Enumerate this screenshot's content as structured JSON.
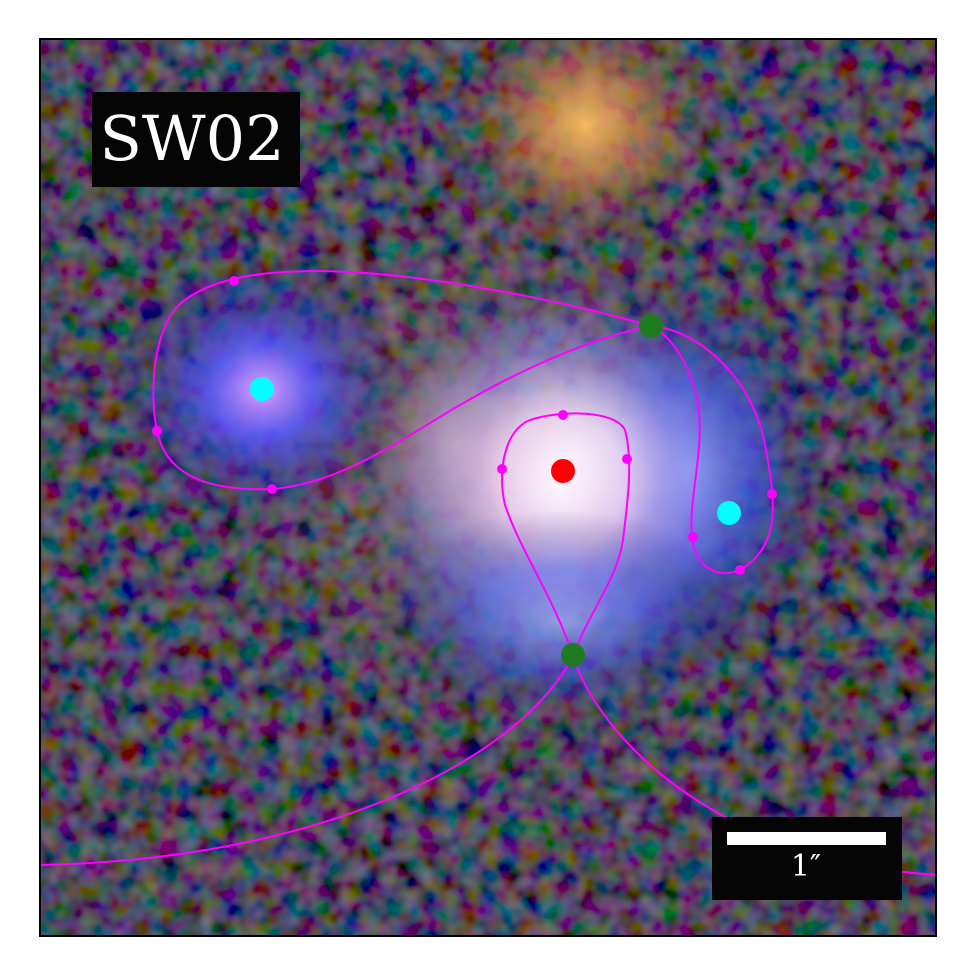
{
  "panel_label": "SW02",
  "scale_bar_label": "1″",
  "colors": {
    "curve": "#ff00ff",
    "critical_point": "#1f7a1f",
    "center_point": "#ff0000",
    "image_point": "#00ffff",
    "label_box": "#050505",
    "frame": "#000000"
  },
  "icons": [
    "lens-center-marker",
    "lensed-image-marker",
    "critical-point-marker"
  ]
}
